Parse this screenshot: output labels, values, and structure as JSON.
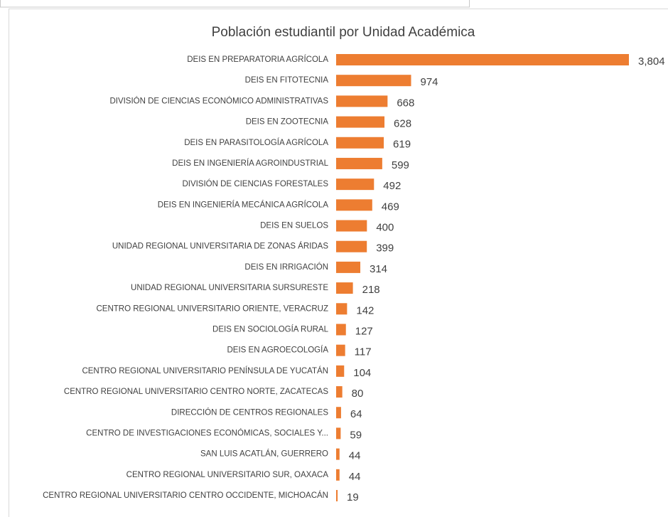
{
  "chart_data": {
    "type": "bar",
    "orientation": "horizontal",
    "title": "Población estudiantil por Unidad Académica",
    "categories": [
      "DEIS EN PREPARATORIA AGRÍCOLA",
      "DEIS EN FITOTECNIA",
      "DIVISIÓN DE CIENCIAS ECONÓMICO ADMINISTRATIVAS",
      "DEIS EN ZOOTECNIA",
      "DEIS EN PARASITOLOGÍA AGRÍCOLA",
      "DEIS EN INGENIERÍA AGROINDUSTRIAL",
      "DIVISIÓN DE CIENCIAS FORESTALES",
      "DEIS EN INGENIERÍA MECÁNICA AGRÍCOLA",
      "DEIS EN SUELOS",
      "UNIDAD REGIONAL UNIVERSITARIA DE ZONAS ÁRIDAS",
      "DEIS EN IRRIGACIÓN",
      "UNIDAD REGIONAL UNIVERSITARIA SURSURESTE",
      "CENTRO REGIONAL UNIVERSITARIO ORIENTE, VERACRUZ",
      "DEIS EN SOCIOLOGÍA RURAL",
      "DEIS EN AGROECOLOGÍA",
      "CENTRO REGIONAL UNIVERSITARIO PENÍNSULA DE YUCATÁN",
      "CENTRO REGIONAL UNIVERSITARIO CENTRO NORTE, ZACATECAS",
      "DIRECCIÓN DE CENTROS REGIONALES",
      "CENTRO DE INVESTIGACIONES ECONÓMICAS, SOCIALES Y...",
      "SAN LUIS ACATLÁN, GUERRERO",
      "CENTRO REGIONAL UNIVERSITARIO SUR, OAXACA",
      "CENTRO REGIONAL UNIVERSITARIO CENTRO OCCIDENTE, MICHOACÁN"
    ],
    "values": [
      3804,
      974,
      668,
      628,
      619,
      599,
      492,
      469,
      400,
      399,
      314,
      218,
      142,
      127,
      117,
      104,
      80,
      64,
      59,
      44,
      44,
      19
    ],
    "value_labels": [
      "3,804",
      "974",
      "668",
      "628",
      "619",
      "599",
      "492",
      "469",
      "400",
      "399",
      "314",
      "218",
      "142",
      "127",
      "117",
      "104",
      "80",
      "64",
      "59",
      "44",
      "44",
      "19"
    ],
    "color": "#ed7d31"
  }
}
